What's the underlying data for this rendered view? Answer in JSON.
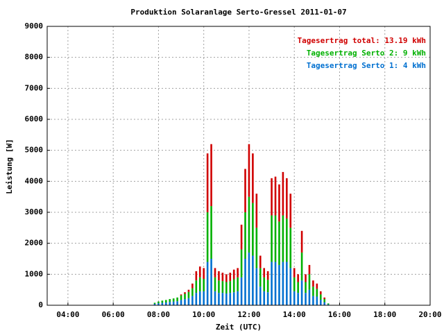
{
  "chart_data": {
    "type": "stacked_bar",
    "title": "Produktion Solaranlage Serto-Gressel 2011-01-07",
    "xlabel": "Zeit (UTC)",
    "ylabel": "Leistung [W]",
    "x": [
      470,
      480,
      490,
      500,
      510,
      520,
      530,
      540,
      550,
      560,
      570,
      580,
      590,
      600,
      610,
      620,
      630,
      640,
      650,
      660,
      670,
      680,
      690,
      700,
      710,
      720,
      730,
      740,
      750,
      760,
      770,
      780,
      790,
      800,
      810,
      820,
      830,
      840,
      850,
      860,
      870,
      880,
      890,
      900,
      910,
      920,
      930
    ],
    "series": [
      {
        "name": "Tagesertrag Serto 1: 4 kWh",
        "color": "#0070d0",
        "values": [
          45,
          65,
          80,
          90,
          110,
          120,
          130,
          170,
          200,
          230,
          300,
          400,
          450,
          450,
          1400,
          1500,
          450,
          400,
          400,
          380,
          400,
          420,
          450,
          900,
          1500,
          1700,
          1600,
          1200,
          600,
          450,
          420,
          1400,
          1400,
          1300,
          1400,
          1400,
          1200,
          450,
          400,
          800,
          400,
          500,
          300,
          280,
          180,
          100,
          30
        ]
      },
      {
        "name": "Tagesertrag Serto 2: 9 kWh",
        "color": "#00b000",
        "values": [
          35,
          55,
          70,
          80,
          90,
          100,
          120,
          150,
          170,
          200,
          250,
          400,
          450,
          400,
          1600,
          1700,
          450,
          400,
          380,
          370,
          380,
          420,
          450,
          900,
          1500,
          1800,
          1700,
          1300,
          600,
          450,
          400,
          1500,
          1500,
          1400,
          1500,
          1400,
          1300,
          450,
          350,
          900,
          350,
          500,
          300,
          250,
          170,
          100,
          30
        ]
      },
      {
        "name": "Tagesertrag total: 13.19 kWh",
        "color": "#d00000",
        "values": [
          0,
          0,
          0,
          0,
          0,
          0,
          0,
          30,
          50,
          70,
          150,
          300,
          350,
          350,
          1900,
          2000,
          300,
          300,
          270,
          250,
          270,
          310,
          300,
          800,
          1400,
          1700,
          1600,
          1100,
          400,
          300,
          280,
          1200,
          1250,
          1200,
          1400,
          1300,
          1100,
          300,
          250,
          700,
          250,
          300,
          200,
          170,
          100,
          50,
          0
        ]
      }
    ],
    "xlim": [
      185,
      1200
    ],
    "xticks": [
      {
        "value": 240,
        "label": "04:00"
      },
      {
        "value": 360,
        "label": "06:00"
      },
      {
        "value": 480,
        "label": "08:00"
      },
      {
        "value": 600,
        "label": "10:00"
      },
      {
        "value": 720,
        "label": "12:00"
      },
      {
        "value": 840,
        "label": "14:00"
      },
      {
        "value": 960,
        "label": "16:00"
      },
      {
        "value": 1080,
        "label": "18:00"
      },
      {
        "value": 1200,
        "label": "20:00"
      }
    ],
    "ylim": [
      0,
      9000
    ],
    "yticks": [
      0,
      1000,
      2000,
      3000,
      4000,
      5000,
      6000,
      7000,
      8000,
      9000
    ],
    "grid": true,
    "legend": "upper right"
  }
}
